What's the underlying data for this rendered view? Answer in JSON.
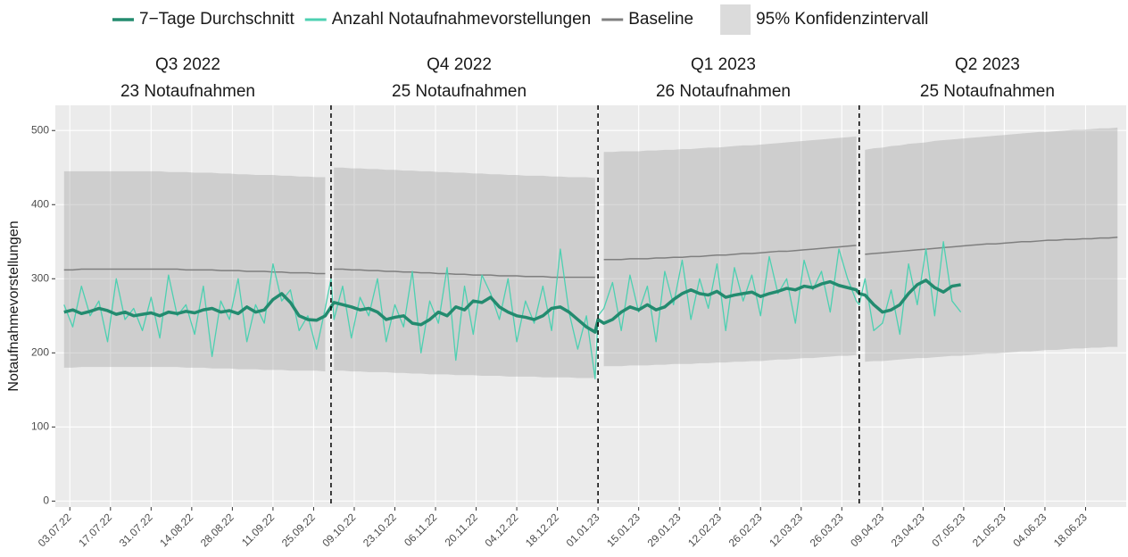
{
  "chart_data": {
    "type": "line",
    "y_label": "Notaufnahmevorstellungen",
    "x": [
      "01.07.22",
      "04.07.22",
      "07.07.22",
      "10.07.22",
      "13.07.22",
      "16.07.22",
      "19.07.22",
      "22.07.22",
      "25.07.22",
      "28.07.22",
      "31.07.22",
      "03.08.22",
      "06.08.22",
      "09.08.22",
      "12.08.22",
      "15.08.22",
      "18.08.22",
      "21.08.22",
      "24.08.22",
      "27.08.22",
      "30.08.22",
      "02.09.22",
      "05.09.22",
      "08.09.22",
      "11.09.22",
      "14.09.22",
      "17.09.22",
      "20.09.22",
      "23.09.22",
      "26.09.22",
      "29.09.22",
      "01.10.22",
      "02.10.22",
      "05.10.22",
      "08.10.22",
      "11.10.22",
      "14.10.22",
      "17.10.22",
      "20.10.22",
      "23.10.22",
      "26.10.22",
      "29.10.22",
      "01.11.22",
      "04.11.22",
      "07.11.22",
      "10.11.22",
      "13.11.22",
      "16.11.22",
      "19.11.22",
      "22.11.22",
      "25.11.22",
      "28.11.22",
      "01.12.22",
      "04.12.22",
      "07.12.22",
      "10.12.22",
      "13.12.22",
      "16.12.22",
      "19.12.22",
      "22.12.22",
      "25.12.22",
      "28.12.22",
      "31.12.22",
      "01.01.23",
      "03.01.23",
      "06.01.23",
      "09.01.23",
      "12.01.23",
      "15.01.23",
      "18.01.23",
      "21.01.23",
      "24.01.23",
      "27.01.23",
      "30.01.23",
      "02.02.23",
      "05.02.23",
      "08.02.23",
      "11.02.23",
      "14.02.23",
      "17.02.23",
      "20.02.23",
      "23.02.23",
      "26.02.23",
      "01.03.23",
      "04.03.23",
      "07.03.23",
      "10.03.23",
      "13.03.23",
      "16.03.23",
      "19.03.23",
      "22.03.23",
      "25.03.23",
      "28.03.23",
      "31.03.23",
      "01.04.23",
      "03.04.23",
      "06.04.23",
      "09.04.23",
      "12.04.23",
      "15.04.23",
      "18.04.23",
      "21.04.23",
      "24.04.23",
      "27.04.23",
      "30.04.23",
      "03.05.23",
      "06.05.23",
      "09.05.23",
      "12.05.23",
      "15.05.23",
      "18.05.23",
      "21.05.23",
      "24.05.23",
      "27.05.23",
      "30.05.23",
      "02.06.23",
      "05.06.23",
      "08.06.23",
      "11.06.23",
      "14.06.23",
      "17.06.23",
      "20.06.23",
      "23.06.23",
      "26.06.23",
      "29.06.23"
    ],
    "series": [
      {
        "name": "7−Tage Durchschnitt",
        "color": "#238b6f",
        "width": 3.5,
        "values": [
          255,
          258,
          253,
          256,
          260,
          257,
          252,
          255,
          250,
          252,
          254,
          250,
          255,
          253,
          256,
          254,
          258,
          260,
          255,
          257,
          253,
          262,
          255,
          258,
          272,
          280,
          268,
          250,
          245,
          244,
          250,
          262,
          268,
          265,
          262,
          258,
          260,
          255,
          245,
          248,
          250,
          240,
          238,
          245,
          255,
          250,
          262,
          258,
          270,
          268,
          275,
          262,
          255,
          250,
          248,
          245,
          250,
          260,
          262,
          255,
          245,
          235,
          228,
          245,
          240,
          245,
          255,
          262,
          258,
          265,
          258,
          262,
          272,
          280,
          285,
          280,
          278,
          283,
          275,
          278,
          280,
          282,
          276,
          280,
          283,
          287,
          285,
          290,
          288,
          293,
          296,
          291,
          288,
          285,
          280,
          278,
          265,
          255,
          258,
          265,
          280,
          292,
          298,
          288,
          282,
          290,
          292,
          null,
          null,
          null,
          null,
          null,
          null,
          null,
          null,
          null,
          null,
          null,
          null,
          null,
          null,
          null,
          null,
          null,
          null
        ]
      },
      {
        "name": "Anzahl Notaufnahmevorstellungen",
        "color": "#4dd0b1",
        "width": 1.3,
        "values": [
          265,
          235,
          290,
          250,
          270,
          215,
          300,
          245,
          260,
          230,
          275,
          220,
          305,
          250,
          265,
          225,
          290,
          195,
          270,
          245,
          300,
          215,
          265,
          240,
          320,
          270,
          285,
          230,
          250,
          205,
          260,
          300,
          245,
          290,
          220,
          275,
          250,
          300,
          215,
          265,
          235,
          310,
          200,
          270,
          240,
          315,
          190,
          290,
          225,
          305,
          280,
          245,
          300,
          215,
          270,
          240,
          290,
          230,
          340,
          255,
          205,
          250,
          165,
          250,
          260,
          295,
          230,
          305,
          255,
          290,
          215,
          310,
          265,
          325,
          245,
          300,
          260,
          320,
          230,
          315,
          270,
          305,
          250,
          330,
          280,
          300,
          240,
          325,
          285,
          310,
          255,
          340,
          300,
          270,
          265,
          300,
          230,
          240,
          285,
          225,
          320,
          265,
          340,
          250,
          350,
          270,
          255,
          null,
          null,
          null,
          null,
          null,
          null,
          null,
          null,
          null,
          null,
          null,
          null,
          null,
          null,
          null,
          null,
          null,
          null
        ]
      },
      {
        "name": "Baseline",
        "color": "#7f7f7f",
        "width": 1.5,
        "values": [
          312,
          312,
          313,
          313,
          313,
          313,
          313,
          313,
          313,
          313,
          313,
          313,
          313,
          313,
          312,
          312,
          312,
          312,
          311,
          311,
          311,
          310,
          310,
          310,
          309,
          309,
          308,
          308,
          308,
          307,
          307,
          null,
          313,
          313,
          312,
          312,
          311,
          311,
          310,
          310,
          309,
          309,
          308,
          308,
          307,
          307,
          306,
          306,
          305,
          305,
          305,
          304,
          304,
          304,
          303,
          303,
          303,
          302,
          302,
          302,
          302,
          302,
          302,
          null,
          326,
          326,
          326,
          327,
          327,
          327,
          328,
          328,
          329,
          329,
          330,
          330,
          331,
          332,
          332,
          333,
          334,
          334,
          335,
          336,
          337,
          337,
          338,
          339,
          340,
          341,
          342,
          343,
          344,
          345,
          null,
          333,
          334,
          335,
          336,
          337,
          338,
          339,
          340,
          341,
          342,
          343,
          344,
          345,
          346,
          347,
          347,
          348,
          349,
          350,
          350,
          351,
          352,
          352,
          353,
          353,
          354,
          354,
          355,
          355,
          356
        ]
      }
    ],
    "band": {
      "name": "95% Konfidenzintervall",
      "color": "#999999",
      "upper": [
        445,
        445,
        445,
        445,
        445,
        445,
        445,
        445,
        445,
        445,
        445,
        445,
        444,
        444,
        444,
        443,
        443,
        443,
        442,
        442,
        441,
        441,
        440,
        440,
        440,
        439,
        439,
        438,
        438,
        437,
        437,
        null,
        450,
        450,
        449,
        449,
        448,
        448,
        447,
        447,
        446,
        446,
        445,
        445,
        444,
        444,
        443,
        443,
        442,
        442,
        441,
        441,
        440,
        440,
        439,
        439,
        439,
        438,
        438,
        437,
        437,
        437,
        436,
        null,
        471,
        471,
        472,
        472,
        472,
        473,
        473,
        474,
        474,
        475,
        475,
        476,
        477,
        477,
        478,
        479,
        480,
        480,
        481,
        482,
        483,
        484,
        485,
        486,
        487,
        488,
        489,
        490,
        491,
        492,
        null,
        474,
        476,
        477,
        479,
        480,
        482,
        483,
        484,
        486,
        487,
        488,
        489,
        490,
        491,
        492,
        493,
        494,
        495,
        496,
        497,
        498,
        498,
        499,
        500,
        501,
        501,
        502,
        503,
        503,
        504
      ],
      "lower": [
        180,
        180,
        181,
        181,
        181,
        181,
        181,
        181,
        181,
        181,
        181,
        181,
        181,
        181,
        180,
        180,
        180,
        179,
        179,
        179,
        178,
        178,
        178,
        177,
        177,
        177,
        176,
        176,
        176,
        176,
        175,
        null,
        176,
        176,
        175,
        175,
        174,
        174,
        174,
        173,
        173,
        172,
        172,
        171,
        171,
        171,
        170,
        170,
        170,
        169,
        169,
        169,
        168,
        168,
        168,
        168,
        167,
        167,
        167,
        167,
        166,
        166,
        166,
        null,
        182,
        182,
        182,
        183,
        183,
        183,
        184,
        184,
        185,
        185,
        185,
        186,
        186,
        187,
        187,
        188,
        188,
        189,
        189,
        190,
        191,
        191,
        192,
        193,
        193,
        194,
        195,
        196,
        196,
        197,
        null,
        188,
        189,
        189,
        190,
        191,
        192,
        193,
        193,
        194,
        195,
        196,
        196,
        197,
        198,
        199,
        199,
        200,
        201,
        202,
        202,
        203,
        204,
        204,
        205,
        206,
        206,
        207,
        207,
        208,
        208
      ]
    },
    "vlines": [
      "01.10.22",
      "01.01.23",
      "01.04.23"
    ],
    "panels": [
      {
        "title": "Q3 2022",
        "subtitle": "23 Notaufnahmen"
      },
      {
        "title": "Q4 2022",
        "subtitle": "25 Notaufnahmen"
      },
      {
        "title": "Q1 2023",
        "subtitle": "26 Notaufnahmen"
      },
      {
        "title": "Q2 2023",
        "subtitle": "25 Notaufnahmen"
      }
    ],
    "xlim": [
      "28.06.22",
      "02.07.23"
    ],
    "xticks": [
      "03.07.22",
      "17.07.22",
      "31.07.22",
      "14.08.22",
      "28.08.22",
      "11.09.22",
      "25.09.22",
      "09.10.22",
      "23.10.22",
      "06.11.22",
      "20.11.22",
      "04.12.22",
      "18.12.22",
      "01.01.23",
      "15.01.23",
      "29.01.23",
      "12.02.23",
      "26.02.23",
      "12.03.23",
      "26.03.23",
      "09.04.23",
      "23.04.23",
      "07.05.23",
      "21.05.23",
      "04.06.23",
      "18.06.23"
    ],
    "ylim": [
      -8,
      534
    ],
    "yticks": [
      0,
      100,
      200,
      300,
      400,
      500
    ],
    "grid": true,
    "legend": "top"
  }
}
